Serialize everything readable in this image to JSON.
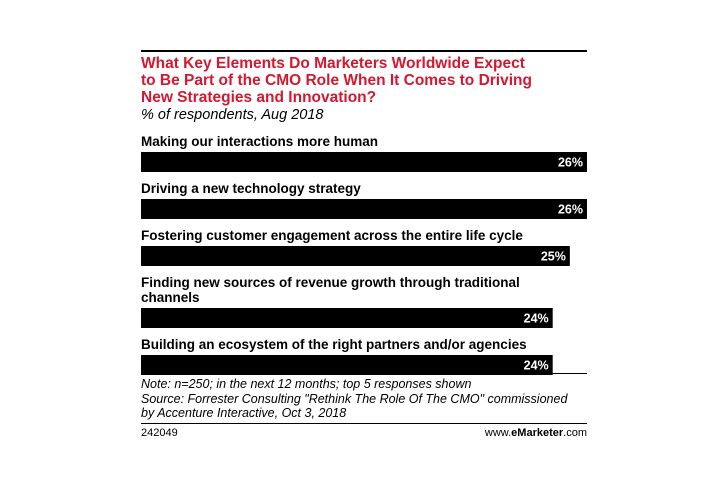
{
  "title": "What Key Elements Do Marketers Worldwide Expect\nto Be Part of the CMO Role When It Comes to Driving\nNew Strategies and Innovation?",
  "subtitle": "% of respondents, Aug 2018",
  "chart_data": {
    "type": "bar",
    "orientation": "horizontal",
    "categories": [
      [
        "Making our interactions more human"
      ],
      [
        "Driving a new technology strategy"
      ],
      [
        "Fostering customer engagement across the entire life cycle"
      ],
      [
        "Finding new sources of revenue growth through traditional",
        "channels"
      ],
      [
        "Building an ecosystem of the right partners and/or agencies"
      ]
    ],
    "values": [
      26,
      26,
      25,
      24,
      24
    ],
    "value_labels": [
      "26%",
      "26%",
      "25%",
      "24%",
      "24%"
    ],
    "bar_color": "#000000",
    "value_label_color": "#ffffff",
    "grid": false
  },
  "notes": {
    "line1": "Note: n=250; in the next 12 months; top 5 responses shown",
    "line2": "Source: Forrester Consulting \"Rethink The Role Of The CMO\" commissioned",
    "line3": "by Accenture Interactive, Oct 3, 2018"
  },
  "footer": {
    "chart_id": "242049",
    "brand_prefix": "www.",
    "brand_bold": "eMarketer",
    "brand_suffix": ".com"
  },
  "colors": {
    "title": "#d3182f",
    "text": "#000000",
    "background": "#ffffff"
  }
}
